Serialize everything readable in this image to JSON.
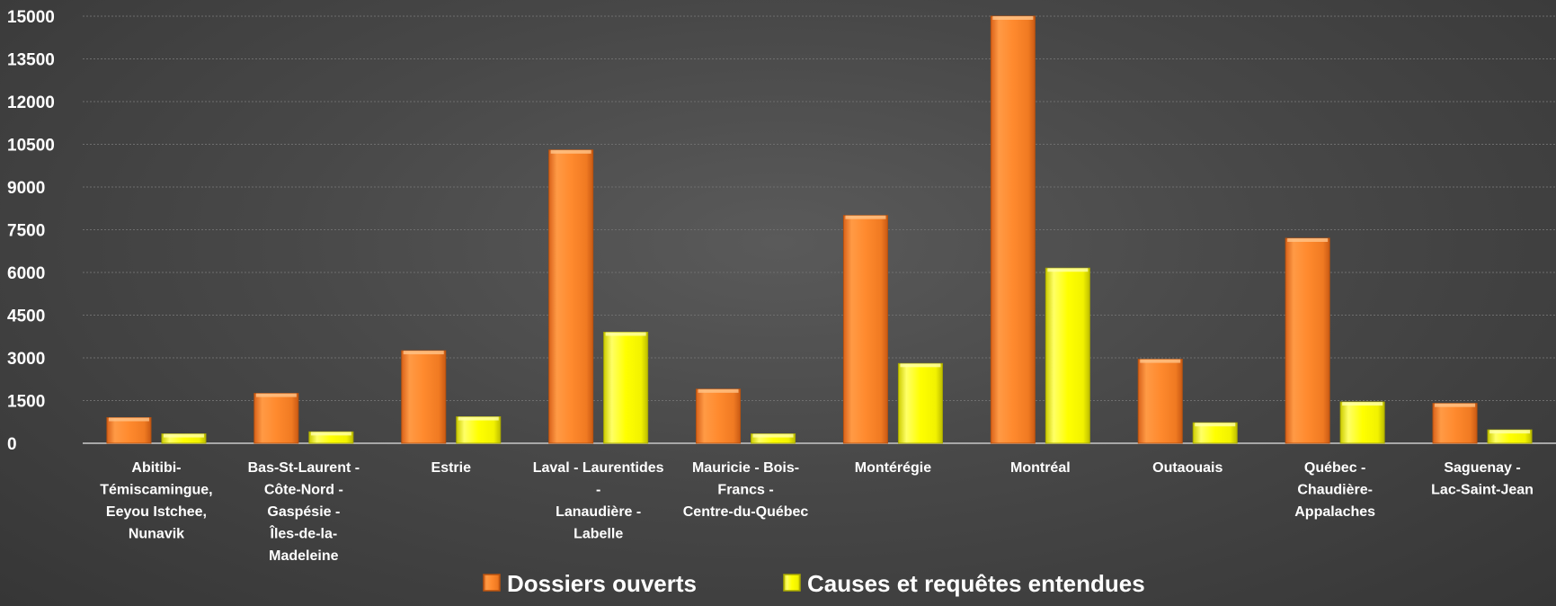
{
  "chart_data": {
    "type": "bar",
    "title": "",
    "xlabel": "",
    "ylabel": "",
    "ylim": [
      0,
      15000
    ],
    "yticks": [
      0,
      1500,
      3000,
      4500,
      6000,
      7500,
      9000,
      10500,
      12000,
      13500,
      15000
    ],
    "grid": true,
    "legend_position": "bottom",
    "categories": [
      [
        "Abitibi-",
        "Témiscamingue,",
        "Eeyou Istchee,",
        "Nunavik"
      ],
      [
        "Bas-St-Laurent -",
        "Côte-Nord -",
        "Gaspésie -",
        "Îles-de-la-",
        "Madeleine"
      ],
      [
        "Estrie"
      ],
      [
        "Laval - Laurentides",
        "-",
        "Lanaudière -",
        "Labelle"
      ],
      [
        "Mauricie - Bois-",
        "Francs -",
        "Centre-du-Québec"
      ],
      [
        "Montérégie"
      ],
      [
        "Montréal"
      ],
      [
        "Outaouais"
      ],
      [
        "Québec -",
        "Chaudière-",
        "Appalaches"
      ],
      [
        "Saguenay -",
        "Lac-Saint-Jean"
      ]
    ],
    "series": [
      {
        "name": "Dossiers ouverts",
        "color": "#ff8a2e",
        "values": [
          900,
          1750,
          3250,
          10300,
          1900,
          8000,
          15000,
          2950,
          7200,
          1400
        ]
      },
      {
        "name": "Causes et requêtes entendues",
        "color": "#ffff00",
        "values": [
          330,
          400,
          930,
          3900,
          330,
          2800,
          6150,
          720,
          1450,
          470
        ]
      }
    ]
  }
}
